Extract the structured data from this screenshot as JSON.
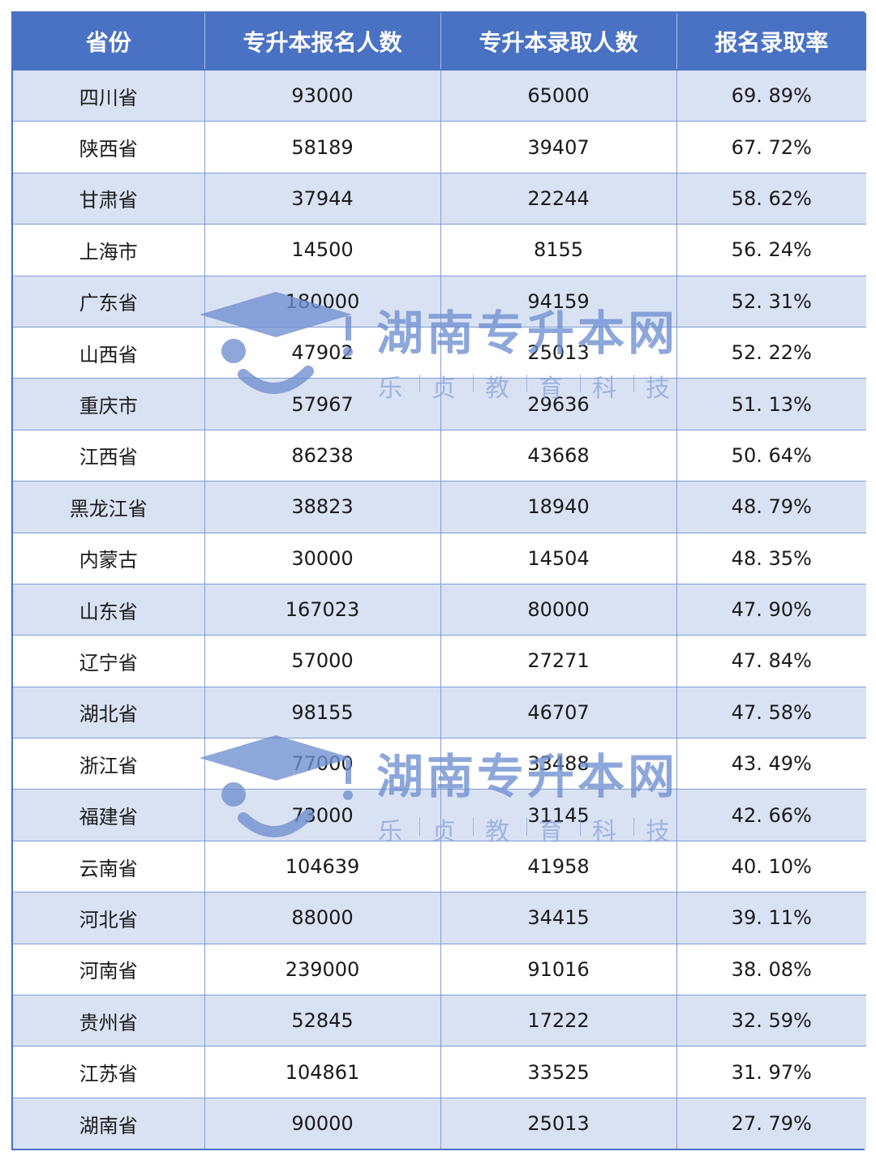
{
  "table": {
    "headers": [
      "省份",
      "专升本报名人数",
      "专升本录取人数",
      "报名录取率"
    ],
    "rows": [
      [
        "四川省",
        "93000",
        "65000",
        "69. 89%"
      ],
      [
        "陕西省",
        "58189",
        "39407",
        "67. 72%"
      ],
      [
        "甘肃省",
        "37944",
        "22244",
        "58. 62%"
      ],
      [
        "上海市",
        "14500",
        "8155",
        "56. 24%"
      ],
      [
        "广东省",
        "180000",
        "94159",
        "52. 31%"
      ],
      [
        "山西省",
        "47902",
        "25013",
        "52. 22%"
      ],
      [
        "重庆市",
        "57967",
        "29636",
        "51. 13%"
      ],
      [
        "江西省",
        "86238",
        "43668",
        "50. 64%"
      ],
      [
        "黑龙江省",
        "38823",
        "18940",
        "48. 79%"
      ],
      [
        "内蒙古",
        "30000",
        "14504",
        "48. 35%"
      ],
      [
        "山东省",
        "167023",
        "80000",
        "47. 90%"
      ],
      [
        "辽宁省",
        "57000",
        "27271",
        "47. 84%"
      ],
      [
        "湖北省",
        "98155",
        "46707",
        "47. 58%"
      ],
      [
        "浙江省",
        "77000",
        "33488",
        "43. 49%"
      ],
      [
        "福建省",
        "73000",
        "31145",
        "42. 66%"
      ],
      [
        "云南省",
        "104639",
        "41958",
        "40. 10%"
      ],
      [
        "河北省",
        "88000",
        "34415",
        "39. 11%"
      ],
      [
        "河南省",
        "239000",
        "91016",
        "38. 08%"
      ],
      [
        "贵州省",
        "52845",
        "17222",
        "32. 59%"
      ],
      [
        "江苏省",
        "104861",
        "33525",
        "31. 97%"
      ],
      [
        "湖南省",
        "90000",
        "25013",
        "27. 79%"
      ]
    ]
  },
  "watermark": {
    "title": "湖南专升本网",
    "subtitle_chars": [
      "乐",
      "贞",
      "教",
      "育",
      "科",
      "技"
    ],
    "color": "#6f8fd0",
    "icon": "graduation-cap-smile-icon"
  },
  "colors": {
    "header_bg": "#4a72c4",
    "row_alt_bg": "#d9e2f3",
    "border": "#7f9bd4"
  }
}
